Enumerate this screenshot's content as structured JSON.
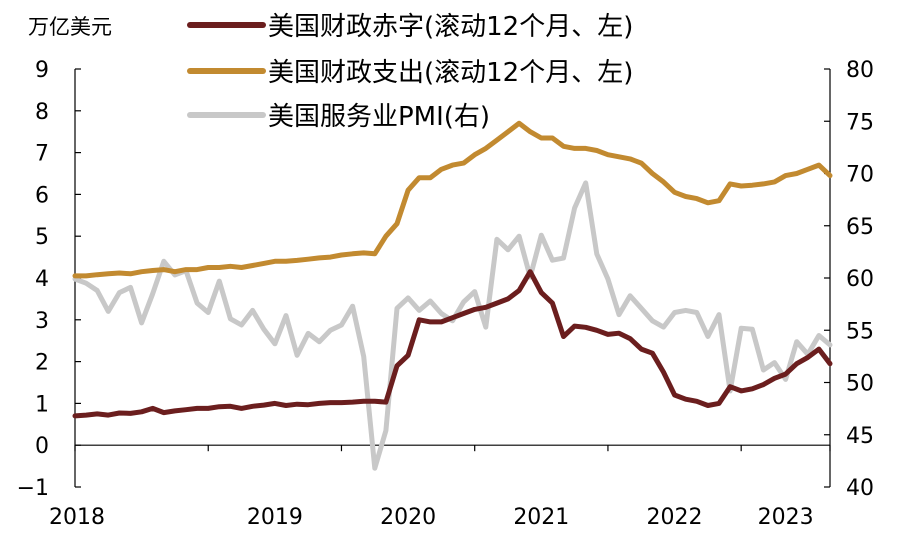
{
  "chart_data": {
    "type": "line",
    "left_unit_label": "万亿美元",
    "x_tick_labels": [
      "2018",
      "2019",
      "2020",
      "2021",
      "2022",
      "2023"
    ],
    "x_range": [
      "2018-01",
      "2023-09"
    ],
    "y_left": {
      "min": -1,
      "max": 9,
      "ticks": [
        -1,
        0,
        1,
        2,
        3,
        4,
        5,
        6,
        7,
        8,
        9
      ]
    },
    "y_right": {
      "min": 40,
      "max": 80,
      "ticks": [
        40,
        45,
        50,
        55,
        60,
        65,
        70,
        75,
        80
      ]
    },
    "grid": false,
    "legend_position": "top",
    "series": [
      {
        "name": "美国财政赤字(滚动12个月、左)",
        "axis": "left",
        "color": "#6b1e1e",
        "points": [
          [
            "2018-01",
            0.7
          ],
          [
            "2018-02",
            0.72
          ],
          [
            "2018-03",
            0.75
          ],
          [
            "2018-04",
            0.72
          ],
          [
            "2018-05",
            0.77
          ],
          [
            "2018-06",
            0.76
          ],
          [
            "2018-07",
            0.8
          ],
          [
            "2018-08",
            0.88
          ],
          [
            "2018-09",
            0.78
          ],
          [
            "2018-10",
            0.82
          ],
          [
            "2018-11",
            0.85
          ],
          [
            "2018-12",
            0.88
          ],
          [
            "2019-01",
            0.88
          ],
          [
            "2019-02",
            0.92
          ],
          [
            "2019-03",
            0.93
          ],
          [
            "2019-04",
            0.88
          ],
          [
            "2019-05",
            0.93
          ],
          [
            "2019-06",
            0.96
          ],
          [
            "2019-07",
            1.0
          ],
          [
            "2019-08",
            0.95
          ],
          [
            "2019-09",
            0.98
          ],
          [
            "2019-10",
            0.97
          ],
          [
            "2019-11",
            1.0
          ],
          [
            "2019-12",
            1.02
          ],
          [
            "2020-01",
            1.02
          ],
          [
            "2020-02",
            1.03
          ],
          [
            "2020-03",
            1.05
          ],
          [
            "2020-04",
            1.05
          ],
          [
            "2020-05",
            1.03
          ],
          [
            "2020-06",
            1.9
          ],
          [
            "2020-07",
            2.15
          ],
          [
            "2020-08",
            3.0
          ],
          [
            "2020-09",
            2.95
          ],
          [
            "2020-10",
            2.95
          ],
          [
            "2020-11",
            3.05
          ],
          [
            "2020-12",
            3.15
          ],
          [
            "2021-01",
            3.25
          ],
          [
            "2021-02",
            3.3
          ],
          [
            "2021-03",
            3.4
          ],
          [
            "2021-04",
            3.5
          ],
          [
            "2021-05",
            3.7
          ],
          [
            "2021-06",
            4.15
          ],
          [
            "2021-07",
            3.65
          ],
          [
            "2021-08",
            3.4
          ],
          [
            "2021-09",
            2.6
          ],
          [
            "2021-10",
            2.85
          ],
          [
            "2021-11",
            2.82
          ],
          [
            "2021-12",
            2.75
          ],
          [
            "2022-01",
            2.65
          ],
          [
            "2022-02",
            2.68
          ],
          [
            "2022-03",
            2.55
          ],
          [
            "2022-04",
            2.3
          ],
          [
            "2022-05",
            2.2
          ],
          [
            "2022-06",
            1.75
          ],
          [
            "2022-07",
            1.2
          ],
          [
            "2022-08",
            1.1
          ],
          [
            "2022-09",
            1.05
          ],
          [
            "2022-10",
            0.95
          ],
          [
            "2022-11",
            1.0
          ],
          [
            "2022-12",
            1.4
          ],
          [
            "2023-01",
            1.3
          ],
          [
            "2023-02",
            1.35
          ],
          [
            "2023-03",
            1.45
          ],
          [
            "2023-04",
            1.6
          ],
          [
            "2023-05",
            1.7
          ],
          [
            "2023-06",
            1.95
          ],
          [
            "2023-07",
            2.1
          ],
          [
            "2023-08",
            2.3
          ],
          [
            "2023-09",
            1.95
          ]
        ]
      },
      {
        "name": "美国财政支出(滚动12个月、左)",
        "axis": "left",
        "color": "#c28a30",
        "points": [
          [
            "2018-01",
            4.05
          ],
          [
            "2018-02",
            4.05
          ],
          [
            "2018-03",
            4.08
          ],
          [
            "2018-04",
            4.1
          ],
          [
            "2018-05",
            4.12
          ],
          [
            "2018-06",
            4.1
          ],
          [
            "2018-07",
            4.15
          ],
          [
            "2018-08",
            4.18
          ],
          [
            "2018-09",
            4.2
          ],
          [
            "2018-10",
            4.15
          ],
          [
            "2018-11",
            4.2
          ],
          [
            "2018-12",
            4.2
          ],
          [
            "2019-01",
            4.25
          ],
          [
            "2019-02",
            4.25
          ],
          [
            "2019-03",
            4.28
          ],
          [
            "2019-04",
            4.25
          ],
          [
            "2019-05",
            4.3
          ],
          [
            "2019-06",
            4.35
          ],
          [
            "2019-07",
            4.4
          ],
          [
            "2019-08",
            4.4
          ],
          [
            "2019-09",
            4.42
          ],
          [
            "2019-10",
            4.45
          ],
          [
            "2019-11",
            4.48
          ],
          [
            "2019-12",
            4.5
          ],
          [
            "2020-01",
            4.55
          ],
          [
            "2020-02",
            4.58
          ],
          [
            "2020-03",
            4.6
          ],
          [
            "2020-04",
            4.58
          ],
          [
            "2020-05",
            5.0
          ],
          [
            "2020-06",
            5.3
          ],
          [
            "2020-07",
            6.1
          ],
          [
            "2020-08",
            6.4
          ],
          [
            "2020-09",
            6.4
          ],
          [
            "2020-10",
            6.6
          ],
          [
            "2020-11",
            6.7
          ],
          [
            "2020-12",
            6.75
          ],
          [
            "2021-01",
            6.95
          ],
          [
            "2021-02",
            7.1
          ],
          [
            "2021-03",
            7.3
          ],
          [
            "2021-04",
            7.5
          ],
          [
            "2021-05",
            7.7
          ],
          [
            "2021-06",
            7.5
          ],
          [
            "2021-07",
            7.35
          ],
          [
            "2021-08",
            7.35
          ],
          [
            "2021-09",
            7.15
          ],
          [
            "2021-10",
            7.1
          ],
          [
            "2021-11",
            7.1
          ],
          [
            "2021-12",
            7.05
          ],
          [
            "2022-01",
            6.95
          ],
          [
            "2022-02",
            6.9
          ],
          [
            "2022-03",
            6.85
          ],
          [
            "2022-04",
            6.75
          ],
          [
            "2022-05",
            6.5
          ],
          [
            "2022-06",
            6.3
          ],
          [
            "2022-07",
            6.05
          ],
          [
            "2022-08",
            5.95
          ],
          [
            "2022-09",
            5.9
          ],
          [
            "2022-10",
            5.8
          ],
          [
            "2022-11",
            5.85
          ],
          [
            "2022-12",
            6.25
          ],
          [
            "2023-01",
            6.2
          ],
          [
            "2023-02",
            6.22
          ],
          [
            "2023-03",
            6.25
          ],
          [
            "2023-04",
            6.3
          ],
          [
            "2023-05",
            6.45
          ],
          [
            "2023-06",
            6.5
          ],
          [
            "2023-07",
            6.6
          ],
          [
            "2023-08",
            6.7
          ],
          [
            "2023-09",
            6.45
          ]
        ]
      },
      {
        "name": "美国服务业PMI(右)",
        "axis": "right",
        "color": "#c8c8c8",
        "points": [
          [
            "2018-01",
            59.9
          ],
          [
            "2018-02",
            59.5
          ],
          [
            "2018-03",
            58.8
          ],
          [
            "2018-04",
            56.8
          ],
          [
            "2018-05",
            58.6
          ],
          [
            "2018-06",
            59.1
          ],
          [
            "2018-07",
            55.7
          ],
          [
            "2018-08",
            58.5
          ],
          [
            "2018-09",
            61.6
          ],
          [
            "2018-10",
            60.3
          ],
          [
            "2018-11",
            60.7
          ],
          [
            "2018-12",
            57.6
          ],
          [
            "2019-01",
            56.7
          ],
          [
            "2019-02",
            59.7
          ],
          [
            "2019-03",
            56.1
          ],
          [
            "2019-04",
            55.5
          ],
          [
            "2019-05",
            56.9
          ],
          [
            "2019-06",
            55.1
          ],
          [
            "2019-07",
            53.7
          ],
          [
            "2019-08",
            56.4
          ],
          [
            "2019-09",
            52.6
          ],
          [
            "2019-10",
            54.7
          ],
          [
            "2019-11",
            53.9
          ],
          [
            "2019-12",
            55.0
          ],
          [
            "2020-01",
            55.5
          ],
          [
            "2020-02",
            57.3
          ],
          [
            "2020-03",
            52.5
          ],
          [
            "2020-04",
            41.8
          ],
          [
            "2020-05",
            45.4
          ],
          [
            "2020-06",
            57.1
          ],
          [
            "2020-07",
            58.1
          ],
          [
            "2020-08",
            56.9
          ],
          [
            "2020-09",
            57.8
          ],
          [
            "2020-10",
            56.6
          ],
          [
            "2020-11",
            55.9
          ],
          [
            "2020-12",
            57.7
          ],
          [
            "2021-01",
            58.7
          ],
          [
            "2021-02",
            55.3
          ],
          [
            "2021-03",
            63.7
          ],
          [
            "2021-04",
            62.7
          ],
          [
            "2021-05",
            64.0
          ],
          [
            "2021-06",
            60.1
          ],
          [
            "2021-07",
            64.1
          ],
          [
            "2021-08",
            61.7
          ],
          [
            "2021-09",
            61.9
          ],
          [
            "2021-10",
            66.7
          ],
          [
            "2021-11",
            69.1
          ],
          [
            "2021-12",
            62.3
          ],
          [
            "2022-01",
            59.9
          ],
          [
            "2022-02",
            56.5
          ],
          [
            "2022-03",
            58.3
          ],
          [
            "2022-04",
            57.1
          ],
          [
            "2022-05",
            55.9
          ],
          [
            "2022-06",
            55.3
          ],
          [
            "2022-07",
            56.7
          ],
          [
            "2022-08",
            56.9
          ],
          [
            "2022-09",
            56.7
          ],
          [
            "2022-10",
            54.4
          ],
          [
            "2022-11",
            56.5
          ],
          [
            "2022-12",
            49.2
          ],
          [
            "2023-01",
            55.2
          ],
          [
            "2023-02",
            55.1
          ],
          [
            "2023-03",
            51.2
          ],
          [
            "2023-04",
            51.9
          ],
          [
            "2023-05",
            50.3
          ],
          [
            "2023-06",
            53.9
          ],
          [
            "2023-07",
            52.7
          ],
          [
            "2023-08",
            54.5
          ],
          [
            "2023-09",
            53.6
          ]
        ]
      }
    ]
  }
}
